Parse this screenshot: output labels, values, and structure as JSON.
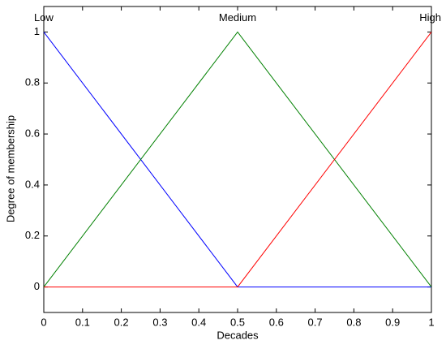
{
  "chart_data": {
    "type": "line",
    "x_label": "Decades",
    "y_label": "Degree of membership",
    "x": [
      0,
      0.5,
      1
    ],
    "series": [
      {
        "name": "Low",
        "color": "#0000ff",
        "values": [
          1,
          0,
          0
        ]
      },
      {
        "name": "Medium",
        "color": "#008000",
        "values": [
          0,
          1,
          0
        ]
      },
      {
        "name": "High",
        "color": "#ff0000",
        "values": [
          0,
          0,
          1
        ]
      }
    ],
    "xlim": [
      0,
      1
    ],
    "ylim": [
      -0.1,
      1.1
    ],
    "xticks": [
      0,
      0.1,
      0.2,
      0.3,
      0.4,
      0.5,
      0.6,
      0.7,
      0.8,
      0.9,
      1
    ],
    "yticks": [
      0,
      0.2,
      0.4,
      0.6,
      0.8,
      1
    ],
    "grid": false
  }
}
